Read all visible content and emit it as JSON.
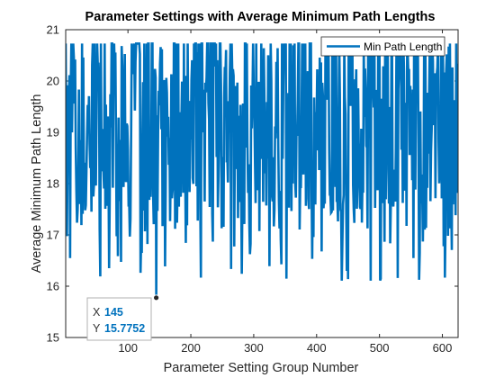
{
  "chart_data": {
    "type": "line",
    "title": "Parameter Settings with Average Minimum Path Lengths",
    "xlabel": "Parameter Setting Group Number",
    "ylabel": "Average Minimum Path Length",
    "xlim": [
      1,
      625
    ],
    "ylim": [
      15,
      21
    ],
    "xticks": [
      100,
      200,
      300,
      400,
      500,
      600
    ],
    "yticks": [
      15,
      16,
      17,
      18,
      19,
      20,
      21
    ],
    "grid": false,
    "legend": {
      "position": "top-right"
    },
    "series": [
      {
        "name": "Min Path Length",
        "color": "#0072BD",
        "n_points": 625,
        "y_range": [
          15.7752,
          20.73
        ],
        "typical_band": [
          17.5,
          20.7
        ],
        "seed": 7
      }
    ],
    "datatip": {
      "x_label": "X",
      "y_label": "Y",
      "x": 145,
      "y": "15.7752",
      "x_value": 145,
      "y_value": 15.7752
    }
  },
  "colors": {
    "line": "#0072BD",
    "axis": "#262626",
    "datatip_border": "#b0b0b0",
    "datatip_value": "#0072BD"
  }
}
